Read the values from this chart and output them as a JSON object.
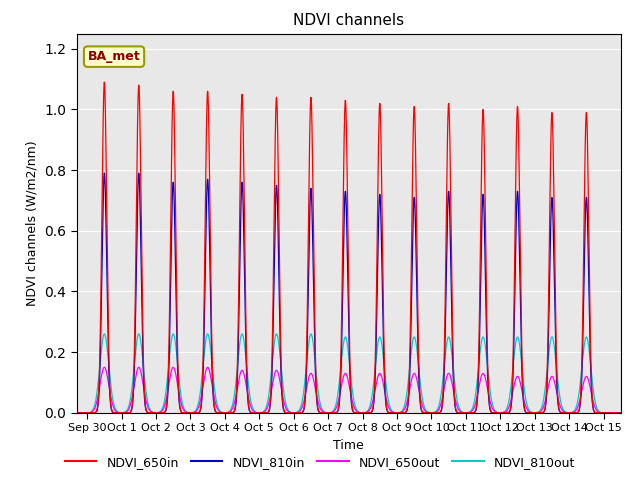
{
  "title": "NDVI channels",
  "xlabel": "Time",
  "ylabel": "NDVI channels (W/m2/nm)",
  "annotation": "BA_met",
  "background_color": "#e8e8e8",
  "figure_background": "#ffffff",
  "legend_entries": [
    "NDVI_650in",
    "NDVI_810in",
    "NDVI_650out",
    "NDVI_810out"
  ],
  "line_colors": [
    "#ff0000",
    "#0000cc",
    "#ff00ff",
    "#00cccc"
  ],
  "ylim": [
    0,
    1.25
  ],
  "xlim_days": [
    -0.3,
    15.5
  ],
  "x_tick_labels": [
    "Sep 30",
    "Oct 1",
    "Oct 2",
    "Oct 3",
    "Oct 4",
    "Oct 5",
    "Oct 6",
    "Oct 7",
    "Oct 8",
    "Oct 9",
    "Oct 10",
    "Oct 11",
    "Oct 12",
    "Oct 13",
    "Oct 14",
    "Oct 15"
  ],
  "x_tick_positions": [
    0,
    1,
    2,
    3,
    4,
    5,
    6,
    7,
    8,
    9,
    10,
    11,
    12,
    13,
    14,
    15
  ],
  "peaks_650in": [
    1.09,
    1.08,
    1.06,
    1.06,
    1.05,
    1.04,
    1.04,
    1.03,
    1.02,
    1.01,
    1.02,
    1.0,
    1.01,
    0.99,
    0.99
  ],
  "peaks_810in": [
    0.79,
    0.79,
    0.76,
    0.77,
    0.76,
    0.75,
    0.74,
    0.73,
    0.72,
    0.71,
    0.73,
    0.72,
    0.73,
    0.71,
    0.71
  ],
  "peaks_650out": [
    0.15,
    0.15,
    0.15,
    0.15,
    0.14,
    0.14,
    0.13,
    0.13,
    0.13,
    0.13,
    0.13,
    0.13,
    0.12,
    0.12,
    0.12
  ],
  "peaks_810out": [
    0.26,
    0.26,
    0.26,
    0.26,
    0.26,
    0.26,
    0.26,
    0.25,
    0.25,
    0.25,
    0.25,
    0.25,
    0.25,
    0.25,
    0.25
  ],
  "hw_in": 0.07,
  "hw_out": 0.13,
  "yticks": [
    0.0,
    0.2,
    0.4,
    0.6,
    0.8,
    1.0,
    1.2
  ]
}
